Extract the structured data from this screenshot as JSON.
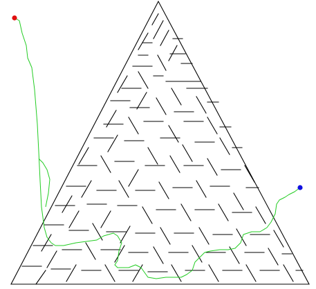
{
  "puzzle": {
    "type": "triangular-maze",
    "solved": true,
    "colors": {
      "background": "#ffffff",
      "walls": "#000000",
      "solution_path": "#22cc22",
      "start_marker": "#e01010",
      "end_marker": "#1010e0"
    }
  }
}
